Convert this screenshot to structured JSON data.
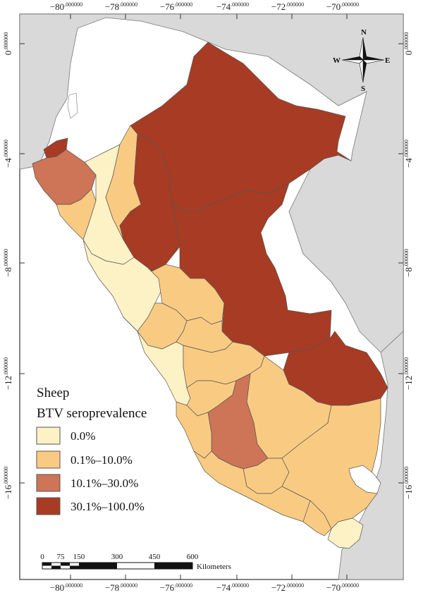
{
  "map": {
    "legend": {
      "title_line1": "Sheep",
      "title_line2": "BTV seroprevalence",
      "items": [
        {
          "label": "0.0%",
          "color": "#fdf1c6"
        },
        {
          "label": "0.1%–10.0%",
          "color": "#f9cb82"
        },
        {
          "label": "10.1%–30.0%",
          "color": "#cd7556"
        },
        {
          "label": "30.1%–100.0%",
          "color": "#a83b24"
        }
      ]
    },
    "colors": {
      "background_land": "#d9d9d9",
      "ocean": "#ffffff",
      "border": "#555555"
    },
    "top_ticks": [
      {
        "main": "−80",
        "sup": ".000000"
      },
      {
        "main": "−78",
        "sup": ".000000"
      },
      {
        "main": "−76",
        "sup": ".000000"
      },
      {
        "main": "−74",
        "sup": ".000000"
      },
      {
        "main": "−72",
        "sup": ".000000"
      },
      {
        "main": "−70",
        "sup": ".000000"
      }
    ],
    "bottom_ticks": [
      {
        "main": "−80",
        "sup": ".000000"
      },
      {
        "main": "−78",
        "sup": ".000000"
      },
      {
        "main": "−76",
        "sup": ".000000"
      },
      {
        "main": "−74",
        "sup": ".000000"
      },
      {
        "main": "−72",
        "sup": ".000000"
      },
      {
        "main": "−70",
        "sup": ".000000"
      }
    ],
    "left_ticks": [
      {
        "main": "0",
        "sup": ".000000"
      },
      {
        "main": "−4",
        "sup": ".000000"
      },
      {
        "main": "−8",
        "sup": ".000000"
      },
      {
        "main": "−12",
        "sup": ".000000"
      },
      {
        "main": "−16",
        "sup": ".000000"
      }
    ],
    "right_ticks": [
      {
        "main": "0",
        "sup": ".000000"
      },
      {
        "main": "−4",
        "sup": ".000000"
      },
      {
        "main": "−8",
        "sup": ".000000"
      },
      {
        "main": "−12",
        "sup": ".000000"
      },
      {
        "main": "−16",
        "sup": ".000000"
      }
    ],
    "scale_bar": {
      "labels": [
        "0",
        "75",
        "150",
        "300",
        "450",
        "600"
      ],
      "unit": "Kilometers"
    },
    "compass": {
      "n": "N",
      "s": "S",
      "e": "E",
      "w": "W"
    }
  }
}
